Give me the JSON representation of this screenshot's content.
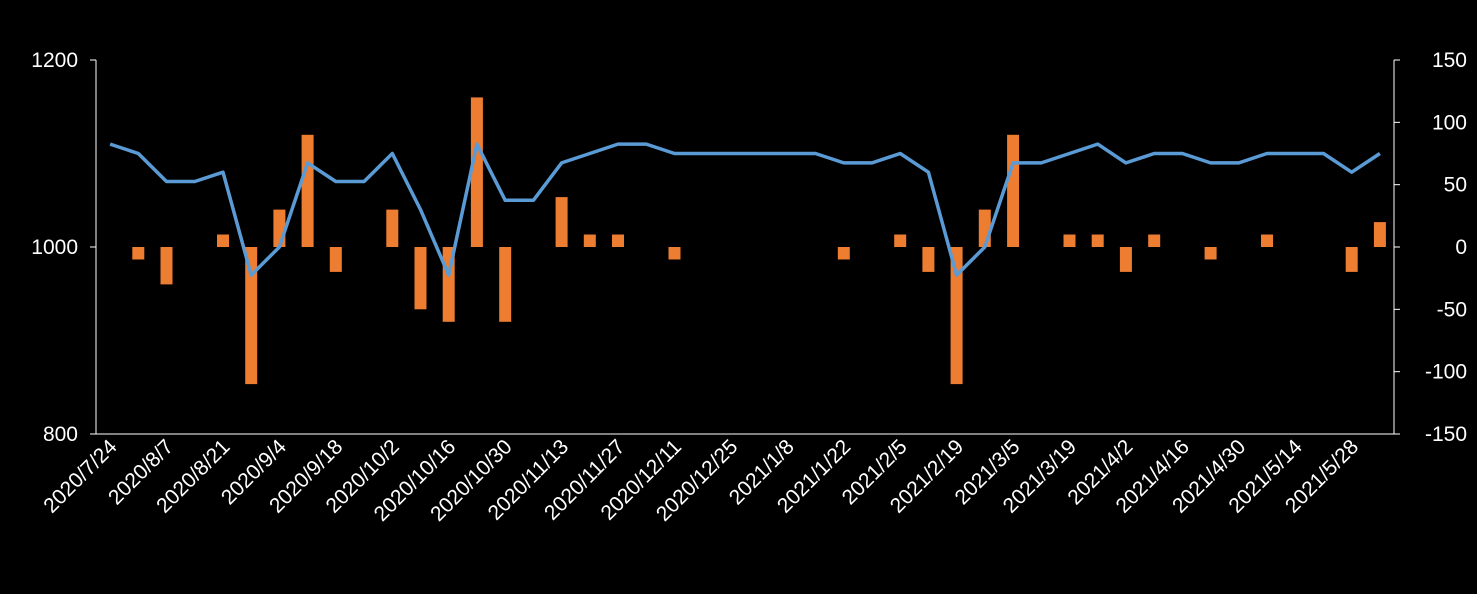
{
  "chart_data": {
    "type": "bar+line",
    "title": "",
    "xlabel": "",
    "ylabel_left": "",
    "ylabel_right": "",
    "grid": false,
    "legend": "none",
    "left_axis": {
      "min": 800,
      "max": 1200,
      "ticks": [
        800,
        1000,
        1200
      ]
    },
    "right_axis": {
      "min": -150,
      "max": 150,
      "ticks": [
        -150,
        -100,
        -50,
        0,
        50,
        100,
        150
      ]
    },
    "x_tick_labels": [
      "2020/7/24",
      "2020/8/7",
      "2020/8/21",
      "2020/9/4",
      "2020/9/18",
      "2020/10/2",
      "2020/10/16",
      "2020/10/30",
      "2020/11/13",
      "2020/11/27",
      "2020/12/11",
      "2020/12/25",
      "2021/1/8",
      "2021/1/22",
      "2021/2/5",
      "2021/2/19",
      "2021/3/5",
      "2021/3/19",
      "2021/4/2",
      "2021/4/16",
      "2021/4/30",
      "2021/5/14",
      "2021/5/28"
    ],
    "dates": [
      "2020/7/24",
      "2020/7/31",
      "2020/8/7",
      "2020/8/14",
      "2020/8/21",
      "2020/8/28",
      "2020/9/4",
      "2020/9/11",
      "2020/9/18",
      "2020/9/25",
      "2020/10/2",
      "2020/10/9",
      "2020/10/16",
      "2020/10/23",
      "2020/10/30",
      "2020/11/6",
      "2020/11/13",
      "2020/11/20",
      "2020/11/27",
      "2020/12/4",
      "2020/12/11",
      "2020/12/18",
      "2020/12/25",
      "2021/1/1",
      "2021/1/8",
      "2021/1/15",
      "2021/1/22",
      "2021/1/29",
      "2021/2/5",
      "2021/2/12",
      "2021/2/19",
      "2021/2/26",
      "2021/3/5",
      "2021/3/12",
      "2021/3/19",
      "2021/3/26",
      "2021/4/2",
      "2021/4/9",
      "2021/4/16",
      "2021/4/23",
      "2021/4/30",
      "2021/5/7",
      "2021/5/14",
      "2021/5/21",
      "2021/5/28",
      "2021/6/4"
    ],
    "series": [
      {
        "type": "line",
        "axis": "left",
        "color": "#5b9bd5",
        "values": [
          1110,
          1100,
          1070,
          1070,
          1080,
          970,
          1000,
          1090,
          1070,
          1070,
          1100,
          1040,
          970,
          1110,
          1050,
          1050,
          1090,
          1100,
          1110,
          1110,
          1100,
          1100,
          1100,
          1100,
          1100,
          1100,
          1090,
          1090,
          1100,
          1080,
          970,
          1000,
          1090,
          1090,
          1100,
          1110,
          1090,
          1100,
          1100,
          1090,
          1090,
          1100,
          1100,
          1100,
          1080,
          1100
        ]
      },
      {
        "type": "bar",
        "axis": "right",
        "color": "#ed7d31",
        "values": [
          0,
          -10,
          -30,
          0,
          10,
          -110,
          30,
          90,
          -20,
          0,
          30,
          -50,
          -60,
          120,
          -60,
          0,
          40,
          10,
          10,
          0,
          -10,
          0,
          0,
          0,
          0,
          0,
          -10,
          0,
          10,
          -20,
          -110,
          30,
          90,
          0,
          10,
          10,
          -20,
          10,
          0,
          -10,
          0,
          10,
          0,
          0,
          -20,
          20
        ]
      }
    ]
  }
}
